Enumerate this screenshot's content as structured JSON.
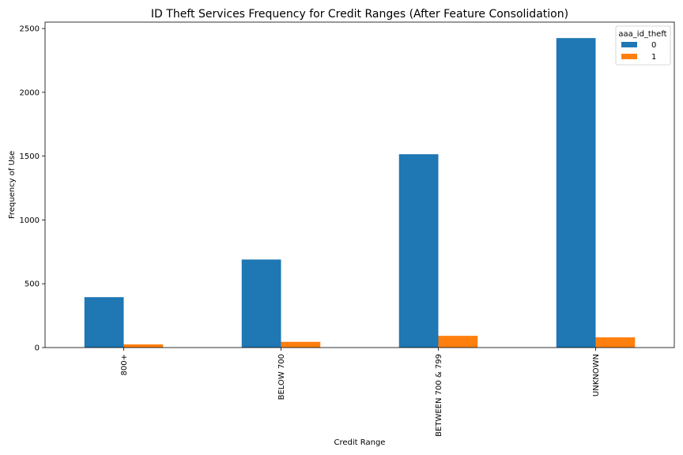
{
  "chart_data": {
    "type": "bar",
    "title": "ID Theft Services Frequency for Credit Ranges (After Feature Consolidation)",
    "xlabel": "Credit Range",
    "ylabel": "Frequency of Use",
    "categories": [
      "800+",
      "BELOW 700",
      "BETWEEN 700 & 799",
      "UNKNOWN"
    ],
    "series": [
      {
        "name": "0",
        "color": "#1f77b4",
        "values": [
          395,
          690,
          1515,
          2425
        ]
      },
      {
        "name": "1",
        "color": "#ff7f0e",
        "values": [
          25,
          45,
          92,
          80
        ]
      }
    ],
    "ylim": [
      0,
      2550
    ],
    "yticks": [
      0,
      500,
      1000,
      1500,
      2000,
      2500
    ],
    "legend": {
      "title": "aaa_id_theft",
      "placement": "top-right"
    },
    "grid": false,
    "tick_label_rotation": "vertical"
  }
}
